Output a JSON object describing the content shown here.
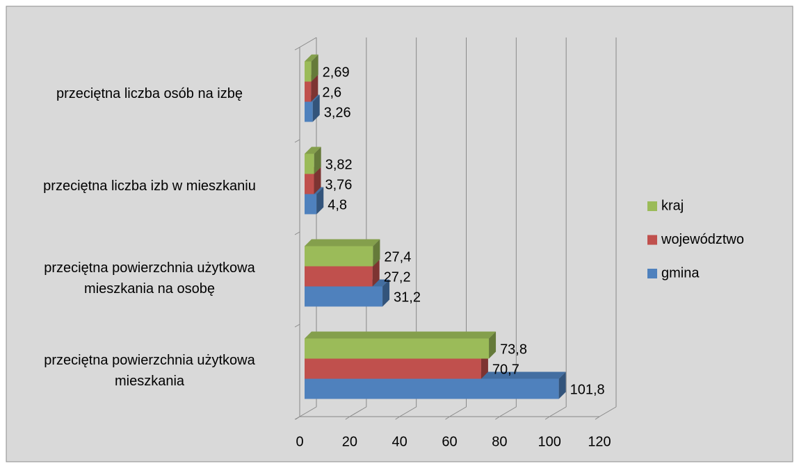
{
  "chart_data": {
    "type": "bar3d_horizontal",
    "categories": [
      "przeciętna powierzchnia użytkowa mieszkania",
      "przeciętna powierzchnia użytkowa mieszkania na osobę",
      "przeciętna liczba izb w mieszkaniu",
      "przeciętna liczba osób na izbę"
    ],
    "series": [
      {
        "name": "gmina",
        "color": "#4f81bd",
        "values": [
          101.8,
          31.2,
          4.8,
          3.26
        ],
        "value_labels": [
          "101,8",
          "31,2",
          "4,8",
          "3,26"
        ]
      },
      {
        "name": "województwo",
        "color": "#c0504d",
        "values": [
          70.7,
          27.2,
          3.76,
          2.6
        ],
        "value_labels": [
          "70,7",
          "27,2",
          "3,76",
          "2,6"
        ]
      },
      {
        "name": "kraj",
        "color": "#9bbb59",
        "values": [
          73.8,
          27.4,
          3.82,
          2.69
        ],
        "value_labels": [
          "73,8",
          "27,4",
          "3,82",
          "2,69"
        ]
      }
    ],
    "xlim": [
      0,
      120
    ],
    "xticks": [
      0,
      20,
      40,
      60,
      80,
      100,
      120
    ],
    "grid": true,
    "legend": "right"
  }
}
